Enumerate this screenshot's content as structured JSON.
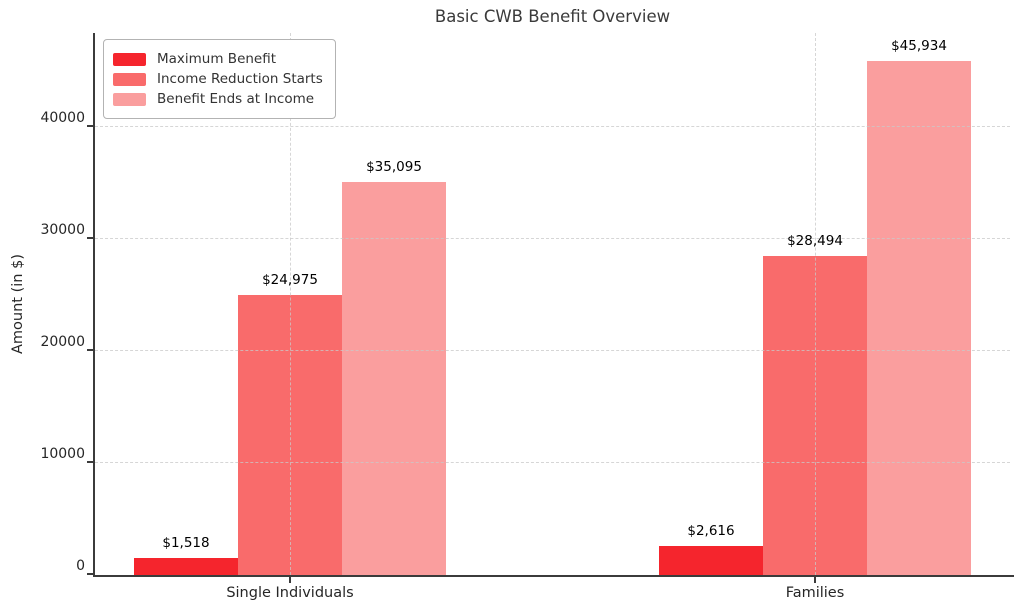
{
  "chart_data": {
    "type": "bar",
    "title": "Basic CWB Benefit Overview",
    "xlabel": "",
    "ylabel": "Amount (in $)",
    "categories": [
      "Single Individuals",
      "Families"
    ],
    "series": [
      {
        "name": "Maximum Benefit",
        "color": "#f5252d",
        "values": [
          1518,
          2616
        ],
        "labels": [
          "$1,518",
          "$2,616"
        ]
      },
      {
        "name": "Income Reduction Starts",
        "color": "#f96b6b",
        "values": [
          24975,
          28494
        ],
        "labels": [
          "$24,975",
          "$28,494"
        ]
      },
      {
        "name": "Benefit Ends at Income",
        "color": "#fa9e9e",
        "values": [
          35095,
          45934
        ],
        "labels": [
          "$35,095",
          "$45,934"
        ]
      }
    ],
    "y_ticks": [
      0,
      10000,
      20000,
      30000,
      40000
    ],
    "ylim": [
      0,
      48400
    ],
    "grid": "dashed",
    "legend_position": "upper left"
  }
}
